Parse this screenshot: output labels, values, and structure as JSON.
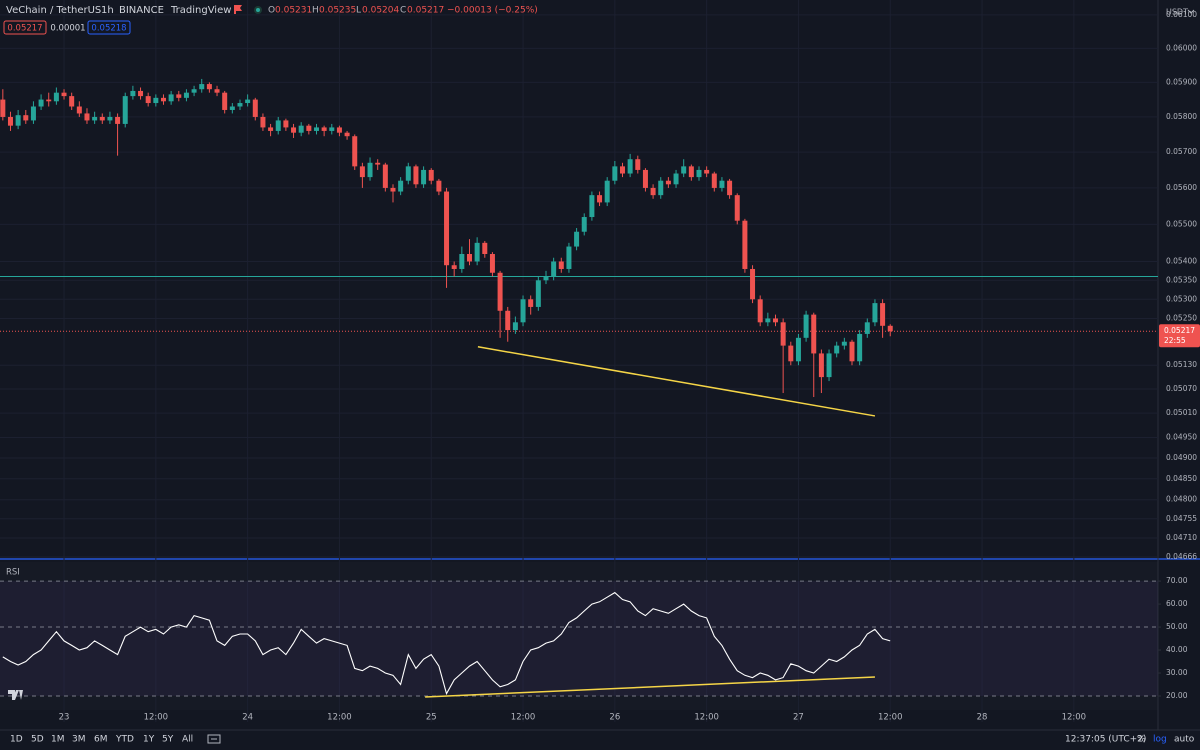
{
  "header": {
    "symbol": "VeChain / TetherUS",
    "interval": "1h",
    "exchange": "BINANCE",
    "source": "TradingView",
    "ohlc": [
      {
        "key": "O",
        "value": "0.05231"
      },
      {
        "key": "H",
        "value": "0.05235"
      },
      {
        "key": "L",
        "value": "0.05204"
      },
      {
        "key": "C",
        "value": "0.05217"
      }
    ],
    "change": "−0.00013 (−0.25%)"
  },
  "badges": [
    "0.05217",
    "0.00001",
    "0.05218"
  ],
  "currency": "USDT",
  "toolbar": {
    "ranges": [
      "1D",
      "5D",
      "1M",
      "3M",
      "6M",
      "YTD",
      "1Y",
      "5Y",
      "All"
    ],
    "clock": "12:37:05 (UTC+2)",
    "options": [
      "%",
      "log",
      "auto"
    ]
  },
  "chart_data": [
    {
      "type": "candlestick",
      "log_scale": true,
      "up_color": "#26a69a",
      "down_color": "#ef5350",
      "grid": true,
      "x": [
        -8,
        -7,
        -6,
        -5,
        -4,
        -3,
        -2,
        -1,
        0,
        1,
        2,
        3,
        4,
        5,
        6,
        7,
        8,
        9,
        10,
        11,
        12,
        13,
        14,
        15,
        16,
        17,
        18,
        19,
        20,
        21,
        22,
        23,
        24,
        25,
        26,
        27,
        28,
        29,
        30,
        31,
        32,
        33,
        34,
        35,
        36,
        37,
        38,
        39,
        40,
        41,
        42,
        43,
        44,
        45,
        46,
        47,
        48,
        49,
        50,
        51,
        52,
        53,
        54,
        55,
        56,
        57,
        58,
        59,
        60,
        61,
        62,
        63,
        64,
        65,
        66,
        67,
        68,
        69,
        70,
        71,
        72,
        73,
        74,
        75,
        76,
        77,
        78,
        79,
        80,
        81,
        82,
        83,
        84,
        85,
        86,
        87,
        88,
        89,
        90,
        91,
        92,
        93,
        94,
        95,
        96,
        97,
        98,
        99,
        100,
        101,
        102,
        103,
        104,
        105,
        106,
        107,
        108
      ],
      "open": [
        0.0585,
        0.058,
        0.05775,
        0.05805,
        0.0579,
        0.0583,
        0.0585,
        0.05845,
        0.0587,
        0.0586,
        0.0583,
        0.0581,
        0.0579,
        0.058,
        0.0579,
        0.058,
        0.0578,
        0.0586,
        0.05875,
        0.0586,
        0.0584,
        0.05855,
        0.05845,
        0.05865,
        0.05855,
        0.0587,
        0.0588,
        0.05895,
        0.0588,
        0.0587,
        0.0582,
        0.0583,
        0.0584,
        0.0585,
        0.058,
        0.0577,
        0.0576,
        0.0579,
        0.0577,
        0.05755,
        0.05775,
        0.0576,
        0.0577,
        0.0576,
        0.0577,
        0.05755,
        0.05745,
        0.0566,
        0.0563,
        0.0567,
        0.05665,
        0.056,
        0.0559,
        0.0562,
        0.0566,
        0.0561,
        0.0565,
        0.0562,
        0.0559,
        0.0539,
        0.0538,
        0.0542,
        0.054,
        0.0545,
        0.0542,
        0.0537,
        0.0527,
        0.0522,
        0.0524,
        0.053,
        0.0528,
        0.0535,
        0.0536,
        0.054,
        0.0538,
        0.0544,
        0.0548,
        0.0552,
        0.0558,
        0.0556,
        0.0562,
        0.0566,
        0.0564,
        0.0568,
        0.0565,
        0.056,
        0.0558,
        0.0562,
        0.0561,
        0.0564,
        0.0566,
        0.0563,
        0.0565,
        0.0564,
        0.056,
        0.0562,
        0.0558,
        0.0551,
        0.0538,
        0.053,
        0.0524,
        0.0525,
        0.0524,
        0.0518,
        0.0514,
        0.052,
        0.0526,
        0.0516,
        0.051,
        0.0516,
        0.0518,
        0.0519,
        0.0514,
        0.0521,
        0.0524,
        0.0529,
        0.05231
      ],
      "high": [
        0.0588,
        0.05815,
        0.0582,
        0.0582,
        0.05845,
        0.05865,
        0.0587,
        0.05885,
        0.0588,
        0.0587,
        0.05845,
        0.05825,
        0.05815,
        0.0581,
        0.05815,
        0.0581,
        0.0587,
        0.0589,
        0.05885,
        0.0587,
        0.05865,
        0.05865,
        0.05875,
        0.05875,
        0.0588,
        0.0589,
        0.0591,
        0.059,
        0.0589,
        0.05875,
        0.0584,
        0.0585,
        0.05865,
        0.05855,
        0.0581,
        0.0578,
        0.058,
        0.05795,
        0.0578,
        0.05785,
        0.0578,
        0.0578,
        0.05775,
        0.0578,
        0.05775,
        0.0576,
        0.0575,
        0.0567,
        0.05685,
        0.0568,
        0.0567,
        0.0561,
        0.0563,
        0.0567,
        0.05665,
        0.0566,
        0.05655,
        0.05625,
        0.056,
        0.054,
        0.0544,
        0.0546,
        0.05465,
        0.05455,
        0.05425,
        0.05375,
        0.0528,
        0.05255,
        0.0531,
        0.0531,
        0.0536,
        0.05375,
        0.0541,
        0.0541,
        0.0545,
        0.0549,
        0.0553,
        0.0559,
        0.0559,
        0.0563,
        0.05675,
        0.0567,
        0.05695,
        0.0569,
        0.05655,
        0.0561,
        0.0563,
        0.0563,
        0.0565,
        0.0568,
        0.05665,
        0.0566,
        0.0566,
        0.05645,
        0.0563,
        0.05625,
        0.05585,
        0.05515,
        0.0539,
        0.0531,
        0.05265,
        0.0526,
        0.0525,
        0.0519,
        0.0521,
        0.0527,
        0.05265,
        0.0517,
        0.0517,
        0.0519,
        0.052,
        0.05195,
        0.0522,
        0.0525,
        0.053,
        0.053,
        0.05235
      ],
      "low": [
        0.0579,
        0.0576,
        0.05765,
        0.0578,
        0.0578,
        0.0582,
        0.0583,
        0.05835,
        0.0585,
        0.0582,
        0.058,
        0.0578,
        0.0578,
        0.0578,
        0.0578,
        0.0569,
        0.0577,
        0.0585,
        0.0585,
        0.0583,
        0.0583,
        0.05835,
        0.05835,
        0.05845,
        0.05845,
        0.0586,
        0.0587,
        0.0587,
        0.0586,
        0.0581,
        0.0581,
        0.0582,
        0.0583,
        0.0579,
        0.0576,
        0.05745,
        0.0575,
        0.0576,
        0.0574,
        0.05745,
        0.0575,
        0.0575,
        0.05745,
        0.0575,
        0.05745,
        0.05735,
        0.0565,
        0.056,
        0.0562,
        0.0565,
        0.0559,
        0.0556,
        0.0558,
        0.0561,
        0.056,
        0.056,
        0.0561,
        0.0558,
        0.0533,
        0.0536,
        0.0537,
        0.0539,
        0.0539,
        0.0541,
        0.0536,
        0.052,
        0.0519,
        0.0521,
        0.0523,
        0.0526,
        0.0527,
        0.0534,
        0.0535,
        0.0537,
        0.0537,
        0.0543,
        0.0547,
        0.0551,
        0.0555,
        0.0555,
        0.0561,
        0.0563,
        0.0563,
        0.0564,
        0.0559,
        0.0557,
        0.0557,
        0.056,
        0.056,
        0.0563,
        0.0562,
        0.0562,
        0.0563,
        0.0559,
        0.0559,
        0.0557,
        0.055,
        0.0537,
        0.0529,
        0.0523,
        0.0523,
        0.0523,
        0.0506,
        0.0513,
        0.0513,
        0.0519,
        0.0505,
        0.0506,
        0.0509,
        0.0515,
        0.0517,
        0.0513,
        0.0513,
        0.052,
        0.0523,
        0.052,
        0.05204
      ],
      "close": [
        0.058,
        0.05775,
        0.05805,
        0.0579,
        0.0583,
        0.0585,
        0.05845,
        0.0587,
        0.0586,
        0.0583,
        0.0581,
        0.0579,
        0.058,
        0.0579,
        0.058,
        0.0578,
        0.0586,
        0.05875,
        0.0586,
        0.0584,
        0.05855,
        0.05845,
        0.05865,
        0.05855,
        0.0587,
        0.0588,
        0.05895,
        0.0588,
        0.0587,
        0.0582,
        0.0583,
        0.0584,
        0.0585,
        0.058,
        0.0577,
        0.0576,
        0.0579,
        0.0577,
        0.05755,
        0.05775,
        0.0576,
        0.0577,
        0.0576,
        0.0577,
        0.05755,
        0.05745,
        0.0566,
        0.0563,
        0.0567,
        0.05665,
        0.056,
        0.0559,
        0.0562,
        0.0566,
        0.0561,
        0.0565,
        0.0562,
        0.0559,
        0.0539,
        0.0538,
        0.0542,
        0.054,
        0.0545,
        0.0542,
        0.0537,
        0.0527,
        0.0522,
        0.0524,
        0.053,
        0.0528,
        0.0535,
        0.0536,
        0.054,
        0.0538,
        0.0544,
        0.0548,
        0.0552,
        0.0558,
        0.0556,
        0.0562,
        0.0566,
        0.0564,
        0.0568,
        0.0565,
        0.056,
        0.0558,
        0.0562,
        0.0561,
        0.0564,
        0.0566,
        0.0563,
        0.0565,
        0.0564,
        0.056,
        0.0562,
        0.0558,
        0.0551,
        0.0538,
        0.053,
        0.0524,
        0.0525,
        0.0524,
        0.0518,
        0.0514,
        0.052,
        0.0526,
        0.0516,
        0.051,
        0.0516,
        0.0518,
        0.0519,
        0.0514,
        0.0521,
        0.0524,
        0.0529,
        0.05231,
        0.05217
      ],
      "xlim": [
        -8.37,
        143
      ],
      "ylim": [
        0.04666,
        0.0613
      ],
      "yticks": [
        {
          "value": 0.061,
          "label": "0.06100"
        },
        {
          "value": 0.06,
          "label": "0.06000"
        },
        {
          "value": 0.059,
          "label": "0.05900"
        },
        {
          "value": 0.058,
          "label": "0.05800"
        },
        {
          "value": 0.057,
          "label": "0.05700"
        },
        {
          "value": 0.056,
          "label": "0.05600"
        },
        {
          "value": 0.055,
          "label": "0.05500"
        },
        {
          "value": 0.054,
          "label": "0.05400"
        },
        {
          "value": 0.0535,
          "label": "0.05350"
        },
        {
          "value": 0.053,
          "label": "0.05300"
        },
        {
          "value": 0.0525,
          "label": "0.05250"
        },
        {
          "value": 0.0513,
          "label": "0.05130"
        },
        {
          "value": 0.0507,
          "label": "0.05070"
        },
        {
          "value": 0.0501,
          "label": "0.05010"
        },
        {
          "value": 0.0495,
          "label": "0.04950"
        },
        {
          "value": 0.049,
          "label": "0.04900"
        },
        {
          "value": 0.0485,
          "label": "0.04850"
        },
        {
          "value": 0.048,
          "label": "0.04800"
        },
        {
          "value": 0.04755,
          "label": "0.04755"
        },
        {
          "value": 0.0471,
          "label": "0.04710"
        },
        {
          "value": 0.04666,
          "label": "0.04666"
        }
      ],
      "horizontal_lines": [
        {
          "value": 0.0536,
          "color": "#26a69a"
        }
      ],
      "trend_line": {
        "x": [
          54.1,
          106
        ],
        "y": [
          0.05177,
          0.05003
        ],
        "color": "#f5d547"
      },
      "last_price": {
        "value": 0.05217,
        "label": "0.05217",
        "countdown": "22:55",
        "color": "#ef5350"
      }
    },
    {
      "type": "line",
      "title": "RSI",
      "color": "#ffffff",
      "x": [
        -8,
        -7,
        -6,
        -5,
        -4,
        -3,
        -2,
        -1,
        0,
        1,
        2,
        3,
        4,
        5,
        6,
        7,
        8,
        9,
        10,
        11,
        12,
        13,
        14,
        15,
        16,
        17,
        18,
        19,
        20,
        21,
        22,
        23,
        24,
        25,
        26,
        27,
        28,
        29,
        30,
        31,
        32,
        33,
        34,
        35,
        36,
        37,
        38,
        39,
        40,
        41,
        42,
        43,
        44,
        45,
        46,
        47,
        48,
        49,
        50,
        51,
        52,
        53,
        54,
        55,
        56,
        57,
        58,
        59,
        60,
        61,
        62,
        63,
        64,
        65,
        66,
        67,
        68,
        69,
        70,
        71,
        72,
        73,
        74,
        75,
        76,
        77,
        78,
        79,
        80,
        81,
        82,
        83,
        84,
        85,
        86,
        87,
        88,
        89,
        90,
        91,
        92,
        93,
        94,
        95,
        96,
        97,
        98,
        99,
        100,
        101,
        102,
        103,
        104,
        105,
        106,
        107,
        108
      ],
      "values": [
        37,
        35,
        33.5,
        35,
        38,
        40,
        44,
        48,
        44,
        42,
        40,
        41,
        44,
        42,
        40,
        38,
        46,
        48,
        50,
        48,
        49,
        47,
        50,
        51,
        50,
        55,
        54,
        53,
        44,
        42,
        46,
        47,
        47,
        44,
        38,
        40,
        41,
        38,
        43,
        49,
        46,
        43,
        45,
        44,
        43,
        42,
        32,
        31,
        33,
        32,
        30,
        29,
        25,
        38,
        32,
        36,
        38,
        33,
        21,
        27,
        30,
        33,
        35,
        31,
        27,
        24,
        25,
        27,
        35,
        40,
        41,
        43,
        44,
        47,
        52,
        54,
        57,
        60,
        61,
        63,
        65,
        62,
        61,
        57,
        55,
        58,
        57,
        56,
        58,
        60,
        57,
        55,
        54,
        46,
        42,
        36,
        31,
        29,
        28,
        30,
        29,
        27,
        28,
        34,
        33,
        31,
        30,
        33,
        36,
        35,
        37,
        40,
        42,
        47,
        49,
        45,
        44
      ],
      "xlim": [
        -8.37,
        143
      ],
      "ylim": [
        8.7,
        78.3
      ],
      "yticks": [
        {
          "value": 70,
          "label": "70.00"
        },
        {
          "value": 60,
          "label": "60.00"
        },
        {
          "value": 50,
          "label": "50.00"
        },
        {
          "value": 40,
          "label": "40.00"
        },
        {
          "value": 30,
          "label": "30.00"
        },
        {
          "value": 20,
          "label": "20.00"
        }
      ],
      "bands": {
        "upper": 70,
        "middle": 50,
        "lower": 20,
        "color": "#7e57c2"
      },
      "trend_line": {
        "x": [
          47.2,
          106
        ],
        "y": [
          19.6,
          28.3
        ],
        "color": "#f5d547"
      },
      "xticks": [
        {
          "value": 0,
          "label": "23"
        },
        {
          "value": 12,
          "label": "12:00"
        },
        {
          "value": 24,
          "label": "24"
        },
        {
          "value": 36,
          "label": "12:00"
        },
        {
          "value": 48,
          "label": "25"
        },
        {
          "value": 60,
          "label": "12:00"
        },
        {
          "value": 72,
          "label": "26"
        },
        {
          "value": 84,
          "label": "12:00"
        },
        {
          "value": 96,
          "label": "27"
        },
        {
          "value": 108,
          "label": "12:00"
        },
        {
          "value": 120,
          "label": "28"
        },
        {
          "value": 132,
          "label": "12:00"
        }
      ]
    }
  ]
}
